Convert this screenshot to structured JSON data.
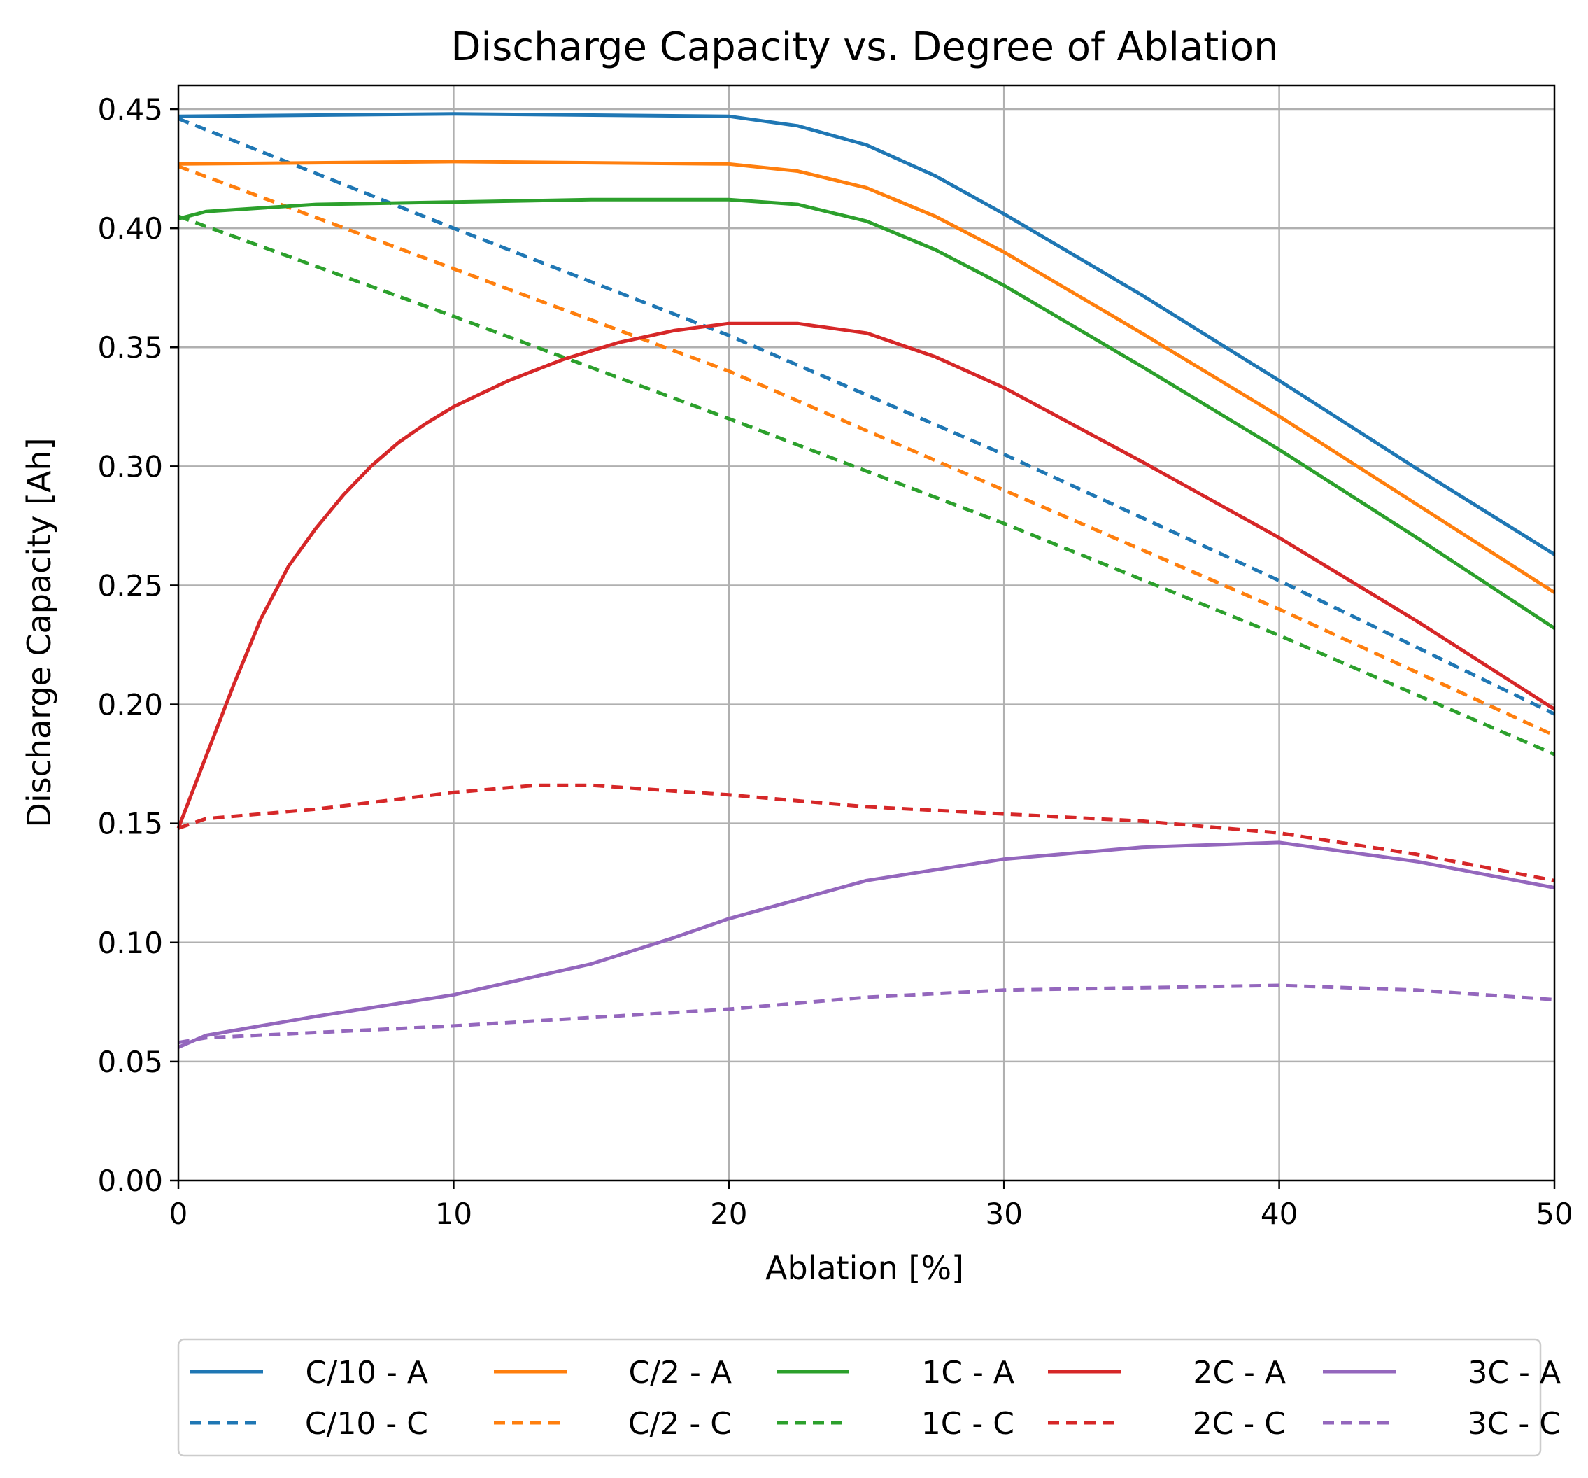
{
  "chart_data": {
    "type": "line",
    "title": "Discharge Capacity vs. Degree of Ablation",
    "xlabel": "Ablation [%]",
    "ylabel": "Discharge Capacity [Ah]",
    "xlim": [
      0,
      50
    ],
    "ylim": [
      0,
      0.46
    ],
    "grid": true,
    "legend_position": "bottom",
    "xticks": [
      0,
      10,
      20,
      30,
      40,
      50
    ],
    "xtick_labels": [
      "0",
      "10",
      "20",
      "30",
      "40",
      "50"
    ],
    "yticks": [
      0,
      0.05,
      0.1,
      0.15,
      0.2,
      0.25,
      0.3,
      0.35,
      0.4,
      0.45
    ],
    "ytick_labels": [
      "0.00",
      "0.05",
      "0.10",
      "0.15",
      "0.20",
      "0.25",
      "0.30",
      "0.35",
      "0.40",
      "0.45"
    ],
    "series": [
      {
        "name": "C/10 - A",
        "color": "#1f77b4",
        "style": "solid",
        "x": [
          0,
          10,
          20,
          22.5,
          25,
          27.5,
          30,
          35,
          40,
          45,
          50
        ],
        "y": [
          0.447,
          0.448,
          0.447,
          0.443,
          0.435,
          0.422,
          0.406,
          0.372,
          0.336,
          0.299,
          0.263
        ]
      },
      {
        "name": "C/10 - C",
        "color": "#1f77b4",
        "style": "dashed",
        "x": [
          0,
          10,
          20,
          30,
          40,
          50
        ],
        "y": [
          0.446,
          0.4,
          0.355,
          0.305,
          0.252,
          0.196
        ]
      },
      {
        "name": "C/2 - A",
        "color": "#ff7f0e",
        "style": "solid",
        "x": [
          0,
          10,
          20,
          22.5,
          25,
          27.5,
          30,
          35,
          40,
          45,
          50
        ],
        "y": [
          0.427,
          0.428,
          0.427,
          0.424,
          0.417,
          0.405,
          0.39,
          0.356,
          0.321,
          0.284,
          0.247
        ]
      },
      {
        "name": "C/2 - C",
        "color": "#ff7f0e",
        "style": "dashed",
        "x": [
          0,
          10,
          20,
          30,
          40,
          50
        ],
        "y": [
          0.426,
          0.383,
          0.34,
          0.29,
          0.24,
          0.187
        ]
      },
      {
        "name": "1C - A",
        "color": "#2ca02c",
        "style": "solid",
        "x": [
          0,
          1,
          5,
          10,
          15,
          20,
          22.5,
          25,
          27.5,
          30,
          35,
          40,
          45,
          50
        ],
        "y": [
          0.404,
          0.407,
          0.41,
          0.411,
          0.412,
          0.412,
          0.41,
          0.403,
          0.391,
          0.376,
          0.342,
          0.307,
          0.27,
          0.232
        ]
      },
      {
        "name": "1C - C",
        "color": "#2ca02c",
        "style": "dashed",
        "x": [
          0,
          10,
          20,
          30,
          40,
          50
        ],
        "y": [
          0.405,
          0.363,
          0.32,
          0.276,
          0.229,
          0.179
        ]
      },
      {
        "name": "2C - A",
        "color": "#d62728",
        "style": "solid",
        "x": [
          0,
          1,
          2,
          3,
          4,
          5,
          6,
          7,
          8,
          9,
          10,
          12,
          14,
          16,
          18,
          20,
          22.5,
          25,
          27.5,
          30,
          35,
          40,
          45,
          50
        ],
        "y": [
          0.148,
          0.178,
          0.208,
          0.236,
          0.258,
          0.274,
          0.288,
          0.3,
          0.31,
          0.318,
          0.325,
          0.336,
          0.345,
          0.352,
          0.357,
          0.36,
          0.36,
          0.356,
          0.346,
          0.333,
          0.302,
          0.27,
          0.235,
          0.198
        ]
      },
      {
        "name": "2C - C",
        "color": "#d62728",
        "style": "dashed",
        "x": [
          0,
          1,
          5,
          10,
          13,
          15,
          20,
          25,
          30,
          35,
          40,
          45,
          50
        ],
        "y": [
          0.148,
          0.152,
          0.156,
          0.163,
          0.166,
          0.166,
          0.162,
          0.157,
          0.154,
          0.151,
          0.146,
          0.137,
          0.126
        ]
      },
      {
        "name": "3C - A",
        "color": "#9467bd",
        "style": "solid",
        "x": [
          0,
          1,
          5,
          10,
          15,
          18,
          20,
          25,
          30,
          35,
          40,
          45,
          50
        ],
        "y": [
          0.056,
          0.061,
          0.069,
          0.078,
          0.091,
          0.102,
          0.11,
          0.126,
          0.135,
          0.14,
          0.142,
          0.134,
          0.123
        ]
      },
      {
        "name": "3C - C",
        "color": "#9467bd",
        "style": "dashed",
        "x": [
          0,
          1,
          10,
          20,
          25,
          30,
          35,
          40,
          45,
          50
        ],
        "y": [
          0.058,
          0.06,
          0.065,
          0.072,
          0.077,
          0.08,
          0.081,
          0.082,
          0.08,
          0.076
        ]
      }
    ],
    "legend_order": [
      "C/10 - A",
      "C/10 - C",
      "C/2 - A",
      "C/2 - C",
      "1C - A",
      "1C - C",
      "2C - A",
      "2C - C",
      "3C - A",
      "3C - C"
    ]
  }
}
